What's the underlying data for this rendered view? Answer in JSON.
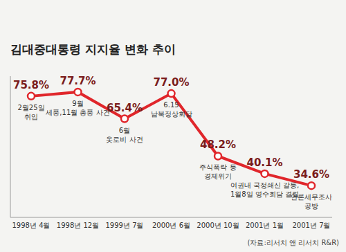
{
  "chart_data": {
    "type": "line",
    "title": "김대중대통령 지지율 변화 추이",
    "categories": [
      "1998년 4월",
      "1998년 12월",
      "1999년 7월",
      "2000년 6월",
      "2000년 10월",
      "2001년 1월",
      "2001년 7월"
    ],
    "values": [
      75.8,
      77.7,
      65.4,
      77.0,
      48.2,
      40.1,
      34.6
    ],
    "value_labels": [
      "75.8%",
      "77.7%",
      "65.4%",
      "77.0%",
      "48.2%",
      "40.1%",
      "34.6%"
    ],
    "annotations": [
      [
        "2월25일",
        "취임"
      ],
      [
        "9월",
        "세풍,11월 총풍 사건"
      ],
      [
        "6월",
        "옷로비 사건"
      ],
      [
        "6.15",
        "남북정상회담"
      ],
      [
        "주식폭락 등",
        "경제위기"
      ],
      [
        "여권내 국정쇄신 갈등,",
        "1월8일 영수회담 결렬"
      ],
      [
        "언론세무조사",
        "공방"
      ]
    ],
    "source": "(자료:리서치 앤 리서치 R&R)",
    "color": "#e0262b",
    "marker": "circle",
    "ylim": [
      20,
      85
    ],
    "tick_labels": "x",
    "data_labels": true,
    "grid": false
  }
}
